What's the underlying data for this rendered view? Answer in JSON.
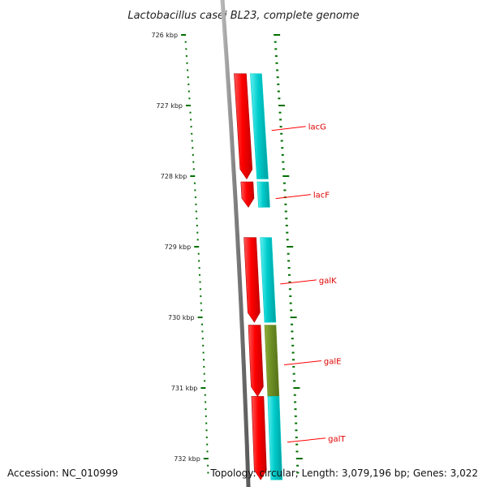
{
  "title": "Lactobacillus casei BL23, complete genome",
  "footer": {
    "accession": "Accession: NC_010999",
    "topology": "Topology: circular; Length: 3,079,196 bp; Genes: 3,022"
  },
  "scale": {
    "tick_labels": [
      "726 kbp",
      "727 kbp",
      "728 kbp",
      "729 kbp",
      "730 kbp",
      "731 kbp",
      "732 kbp"
    ]
  },
  "genes": [
    {
      "label": "lacG",
      "start_kbp": 726.55,
      "end_kbp": 728.04,
      "cds_color": "#00cccc"
    },
    {
      "label": "lacF",
      "start_kbp": 728.08,
      "end_kbp": 728.44,
      "cds_color": "#00cccc"
    },
    {
      "label": "galK",
      "start_kbp": 728.87,
      "end_kbp": 730.07,
      "cds_color": "#00cccc"
    },
    {
      "label": "galE",
      "start_kbp": 730.11,
      "end_kbp": 731.12,
      "cds_color": "#6b8e23"
    },
    {
      "label": "galT",
      "start_kbp": 731.12,
      "end_kbp": 732.3,
      "cds_color": "#00cccc"
    }
  ],
  "colors": {
    "gene_track": "#ff0000",
    "backbone": "#808080",
    "ticks": "#007000",
    "label_line": "#ff0000"
  }
}
